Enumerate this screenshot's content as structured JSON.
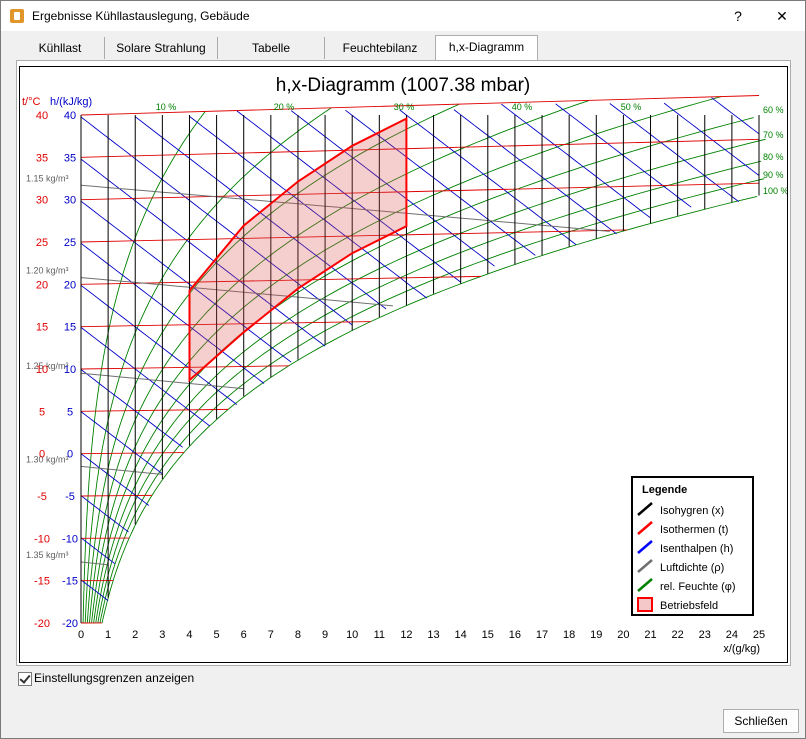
{
  "window": {
    "title": "Ergebnisse Kühllastauslegung, Gebäude",
    "help": "?",
    "close": "✕"
  },
  "tabs": [
    {
      "label": "Kühllast"
    },
    {
      "label": "Solare Strahlung"
    },
    {
      "label": "Tabelle"
    },
    {
      "label": "Feuchtebilanz"
    },
    {
      "label": "h,x-Diagramm",
      "active": true
    }
  ],
  "checkbox": {
    "label": "Einstellungsgrenzen anzeigen",
    "checked": true
  },
  "close_button": {
    "label": "Schließen"
  },
  "chart_data": {
    "type": "line",
    "title": "h,x-Diagramm (1007.38 mbar)",
    "t_axis_label": "t/°C",
    "h_axis_label": "h/(kJ/kg)",
    "x_axis_label": "x/(g/kg)",
    "x_ticks": [
      0,
      1,
      2,
      3,
      4,
      5,
      6,
      7,
      8,
      9,
      10,
      11,
      12,
      13,
      14,
      15,
      16,
      17,
      18,
      19,
      20,
      21,
      22,
      23,
      24,
      25
    ],
    "y_ticks": [
      40,
      35,
      30,
      25,
      20,
      15,
      10,
      5,
      0,
      -5,
      -10,
      -15,
      -20
    ],
    "xlim": [
      0,
      25
    ],
    "ylim": [
      -20,
      40
    ],
    "rh_top_labels": [
      "10 %",
      "20 %",
      "30 %",
      "40 %",
      "50 %"
    ],
    "rh_right_labels": [
      "60 %",
      "70 %",
      "80 %",
      "90 %",
      "100 %"
    ],
    "density_labels": [
      "1.15 kg/m³",
      "1.20 kg/m³",
      "1.25 kg/m³",
      "1.30 kg/m³",
      "1.35 kg/m³"
    ],
    "rh_curves": [
      0.1,
      0.2,
      0.3,
      0.4,
      0.5,
      0.6,
      0.7,
      0.8,
      0.9,
      1.0
    ],
    "pressure_hpa": 1007.38,
    "betriebsfeld": {
      "x_min": 4,
      "x_max": 12,
      "t_top_at_xmin": 19,
      "t_top_at_xmax": 38.5,
      "t_bottom_at_xmin": 8.5,
      "t_bottom_at_xmax": 26,
      "t_top_mid": [
        {
          "x": 6,
          "t": 26.5
        },
        {
          "x": 8,
          "t": 31.5
        },
        {
          "x": 10,
          "t": 35.5
        }
      ],
      "t_bottom_mid": [
        {
          "x": 6,
          "t": 14
        },
        {
          "x": 8,
          "t": 19
        },
        {
          "x": 10,
          "t": 23
        }
      ]
    },
    "legend": {
      "title": "Legende",
      "items": [
        {
          "label": "Isohygren (x)",
          "color": "#000000"
        },
        {
          "label": "Isothermen (t)",
          "color": "#ff0000"
        },
        {
          "label": "Isenthalpen (h)",
          "color": "#0000ff"
        },
        {
          "label": "Luftdichte (ρ)",
          "color": "#707070"
        },
        {
          "label": "rel. Feuchte (φ)",
          "color": "#008000"
        },
        {
          "label": "Betriebsfeld",
          "color": "#ff0000",
          "fill": "#f4c8c8"
        }
      ]
    },
    "colors": {
      "t": "#e00000",
      "h": "#0000c8",
      "rh": "#008000",
      "grid": "#000000",
      "density": "#707070"
    }
  }
}
